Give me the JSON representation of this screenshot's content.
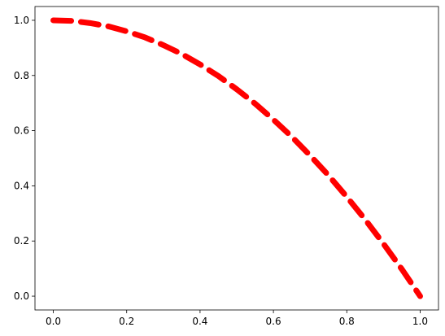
{
  "chart_data": {
    "type": "line",
    "title": "",
    "xlabel": "",
    "ylabel": "",
    "xlim": [
      -0.05,
      1.05
    ],
    "ylim": [
      -0.05,
      1.05
    ],
    "x_ticks": [
      0.0,
      0.2,
      0.4,
      0.6,
      0.8,
      1.0
    ],
    "y_ticks": [
      0.0,
      0.2,
      0.4,
      0.6,
      0.8,
      1.0
    ],
    "x_tick_labels": [
      "0.0",
      "0.2",
      "0.4",
      "0.6",
      "0.8",
      "1.0"
    ],
    "y_tick_labels": [
      "0.0",
      "0.2",
      "0.4",
      "0.6",
      "0.8",
      "1.0"
    ],
    "grid": false,
    "legend": "none",
    "series": [
      {
        "line_style": "dashed",
        "color": "#ff0000",
        "x": [
          0.0,
          0.05,
          0.1,
          0.15,
          0.2,
          0.25,
          0.3,
          0.35,
          0.4,
          0.45,
          0.5,
          0.55,
          0.6,
          0.65,
          0.7,
          0.75,
          0.8,
          0.85,
          0.9,
          0.95,
          1.0
        ],
        "y": [
          1.0,
          0.998,
          0.99,
          0.978,
          0.96,
          0.938,
          0.91,
          0.878,
          0.84,
          0.798,
          0.75,
          0.698,
          0.64,
          0.578,
          0.51,
          0.438,
          0.36,
          0.278,
          0.19,
          0.098,
          0.0
        ]
      }
    ]
  }
}
